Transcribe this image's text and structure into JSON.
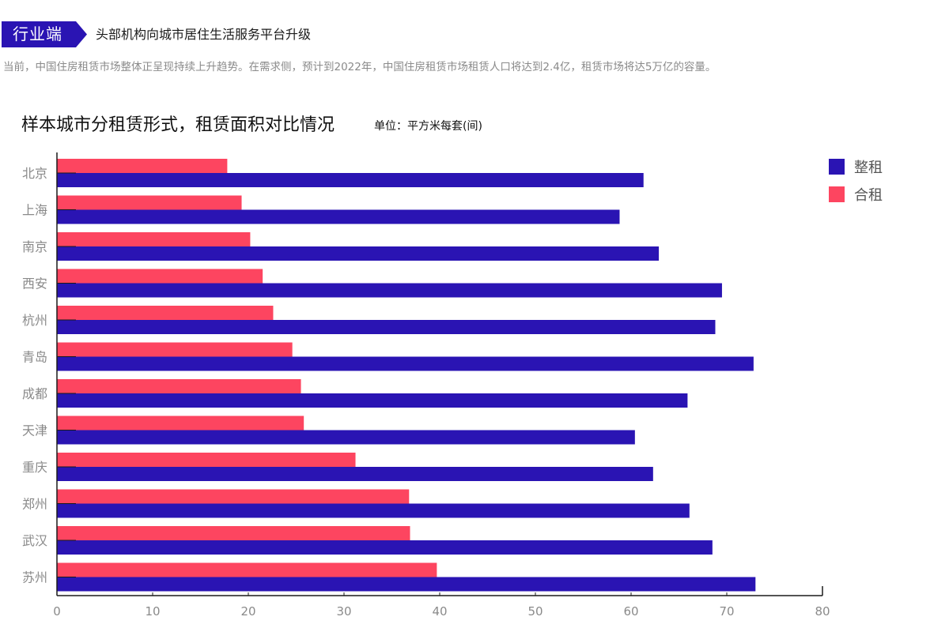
{
  "header": {
    "tag": "行业端",
    "title": "头部机构向城市居住生活服务平台升级",
    "description": "当前，中国住房租赁市场整体正呈现持续上升趋势。在需求侧，预计到2022年，中国住房租赁市场租赁人口将达到2.4亿，租赁市场将达5万亿的容量。"
  },
  "colors": {
    "tag_bg": "#2a14b3",
    "whole_rent": "#2a14b3",
    "shared_rent": "#fd4560"
  },
  "chart_data": {
    "type": "bar",
    "orientation": "horizontal",
    "title": "样本城市分租赁形式，租赁面积对比情况",
    "unit": "单位：平方米每套(间)",
    "categories": [
      "北京",
      "上海",
      "南京",
      "西安",
      "杭州",
      "青岛",
      "成都",
      "天津",
      "重庆",
      "郑州",
      "武汉",
      "苏州"
    ],
    "series": [
      {
        "name": "整租",
        "values": [
          61.3,
          58.8,
          62.9,
          69.5,
          68.8,
          72.8,
          65.9,
          60.4,
          62.3,
          66.1,
          68.5,
          73.0
        ]
      },
      {
        "name": "合租",
        "values": [
          17.8,
          19.3,
          20.2,
          21.5,
          22.6,
          24.6,
          25.5,
          25.8,
          31.2,
          36.8,
          36.9,
          39.7
        ]
      }
    ],
    "xlim": [
      0,
      80
    ],
    "xticks": [
      0,
      10,
      20,
      30,
      40,
      50,
      60,
      70,
      80
    ],
    "legend_position": "top-right",
    "grid": false
  }
}
